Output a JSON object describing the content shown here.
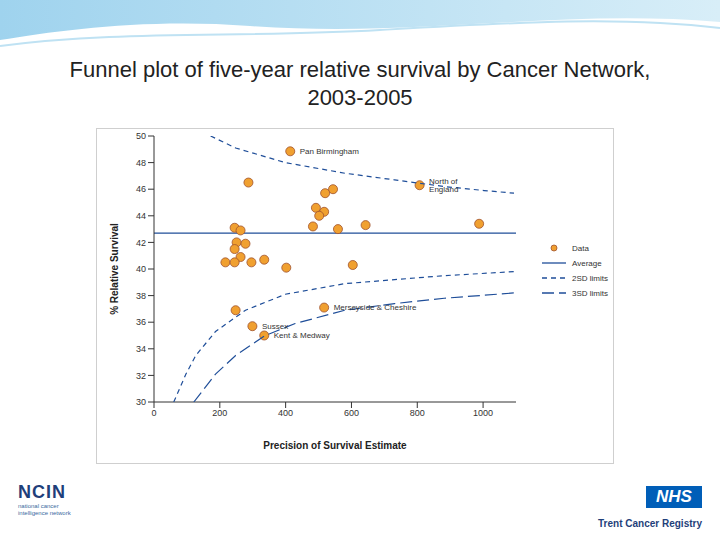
{
  "title": "Funnel plot of five-year relative survival by Cancer Network, 2003-2005",
  "footer": {
    "left_logo": "NCIN",
    "left_logo_text": "national cancer intelligence network",
    "right_logo": "NHS",
    "right_text": "Trent Cancer Registry"
  },
  "chart_data": {
    "type": "scatter",
    "x_label": "Precision of Survival Estimate",
    "y_label": "% Relative Survival",
    "xlim": [
      0,
      1100
    ],
    "xticks": [
      0,
      200,
      400,
      600,
      800,
      1000
    ],
    "ylim": [
      30,
      50
    ],
    "yticks": [
      30,
      32,
      34,
      36,
      38,
      40,
      42,
      44,
      46,
      48,
      50
    ],
    "grid": false,
    "legend": "right",
    "series": [
      {
        "name": "Data",
        "type": "scatter",
        "marker": "circle",
        "color": "#f0a030",
        "x": [
          414,
          287,
          807,
          544,
          520,
          492,
          517,
          502,
          483,
          559,
          643,
          988,
          245,
          263,
          251,
          278,
          245,
          263,
          217,
          245,
          296,
          335,
          402,
          604,
          517,
          248,
          299,
          335
        ],
        "values": [
          48.85,
          46.5,
          46.3,
          46.0,
          45.7,
          44.6,
          44.3,
          44.0,
          43.2,
          43.0,
          43.3,
          43.4,
          43.1,
          42.9,
          42.0,
          41.9,
          41.5,
          40.9,
          40.5,
          40.5,
          40.5,
          40.7,
          40.1,
          40.3,
          37.1,
          36.9,
          35.7,
          35.0
        ],
        "labels": [
          "Pan Birmingham",
          null,
          "North of England",
          null,
          null,
          null,
          null,
          null,
          null,
          null,
          null,
          null,
          null,
          null,
          null,
          null,
          null,
          null,
          null,
          null,
          null,
          null,
          null,
          null,
          "Merseyside & Cheshire",
          null,
          "Sussex",
          "Kent & Medway"
        ]
      },
      {
        "name": "Average",
        "type": "hline",
        "color": "#1f4e99",
        "line_style": "solid",
        "value": 42.7
      },
      {
        "name": "2SD limits",
        "type": "line",
        "color": "#1f4e99",
        "line_style": "dashed",
        "upper": {
          "x": [
            172,
            248,
            399,
            580,
            731,
            882,
            1003,
            1094
          ],
          "values": [
            50,
            49.1,
            48.0,
            47.2,
            46.7,
            46.2,
            45.9,
            45.7
          ]
        },
        "lower": {
          "x": [
            60,
            97,
            127,
            187,
            278,
            399,
            580,
            731,
            882,
            1094
          ],
          "values": [
            30,
            32.1,
            33.5,
            35.3,
            36.9,
            38.1,
            38.9,
            39.2,
            39.5,
            39.8
          ]
        }
      },
      {
        "name": "3SD limits",
        "type": "line",
        "color": "#1f4e99",
        "line_style": "long_dashed",
        "lower": {
          "x": [
            121,
            187,
            248,
            338,
            429,
            580,
            731,
            882,
            1094
          ],
          "values": [
            30,
            32.1,
            33.5,
            35.0,
            35.9,
            36.9,
            37.4,
            37.8,
            38.2
          ]
        }
      }
    ]
  }
}
